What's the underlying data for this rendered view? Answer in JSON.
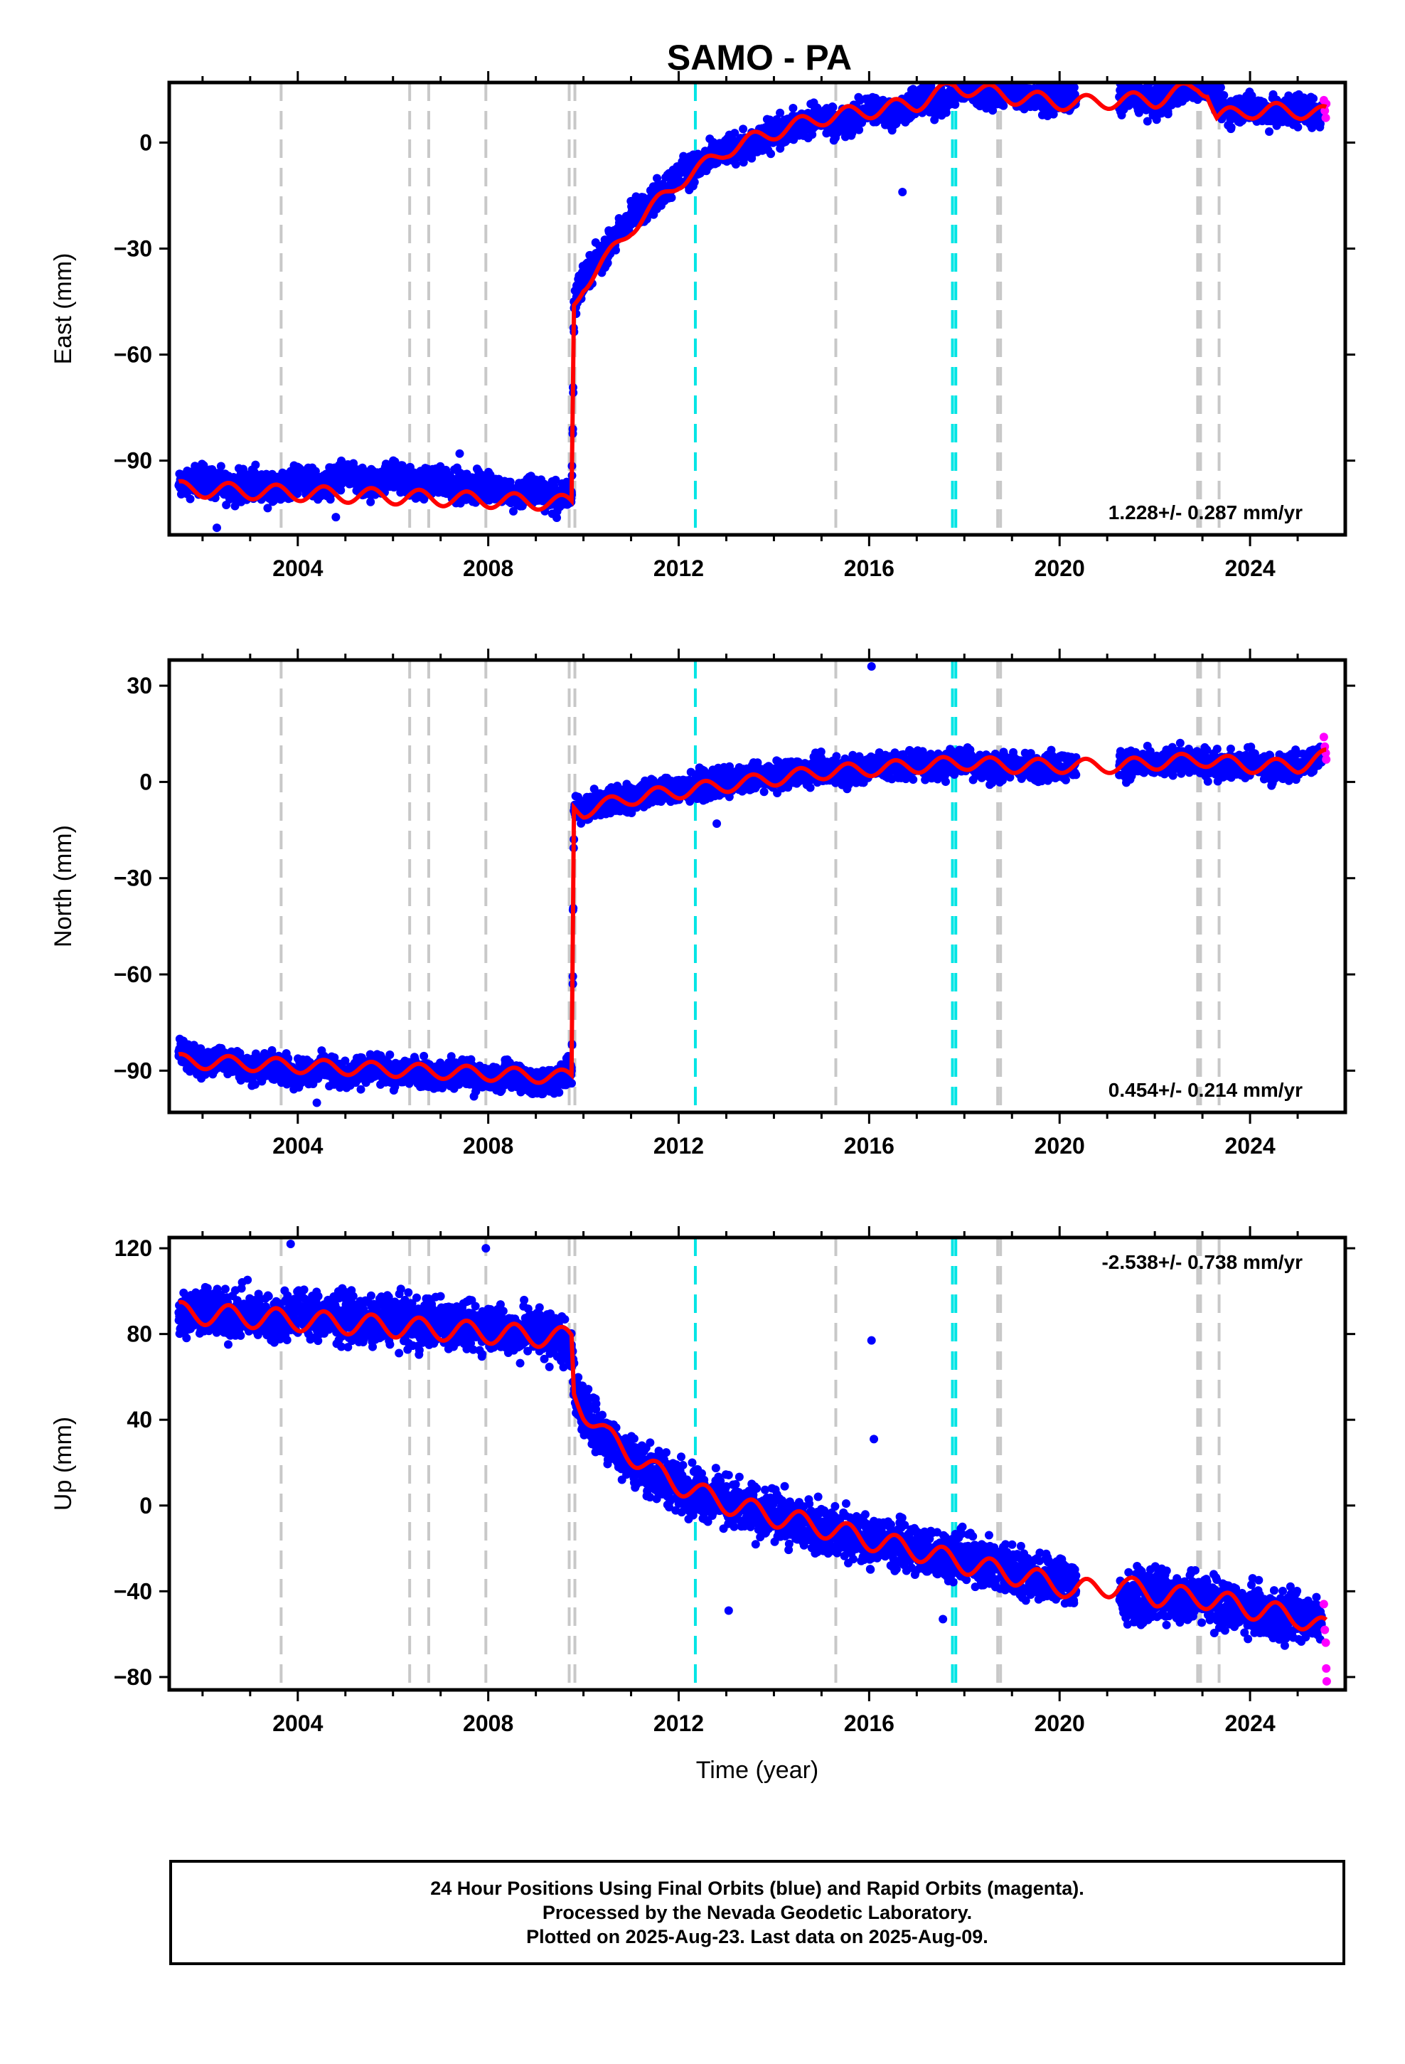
{
  "title": "SAMO - PA",
  "footer": {
    "line1": "24 Hour Positions Using Final Orbits (blue) and Rapid Orbits (magenta).",
    "line2": "Processed by the Nevada Geodetic Laboratory.",
    "line3": "Plotted on 2025-Aug-23. Last data on 2025-Aug-09."
  },
  "chart_data": [
    {
      "type": "scatter",
      "name": "east",
      "ylabel": "East (mm)",
      "xlabel": "",
      "xlim": [
        2001.3,
        2026.0
      ],
      "ylim": [
        -111,
        17
      ],
      "yticks": [
        0,
        -30,
        -60,
        -90
      ],
      "ytick_labels": [
        "0",
        "−30",
        "−60",
        "−90"
      ],
      "xticks": [
        2004,
        2008,
        2012,
        2016,
        2020,
        2024
      ],
      "xtick_labels": [
        "2004",
        "2008",
        "2012",
        "2016",
        "2020",
        "2024"
      ],
      "rate_label": "1.228+/- 0.287 mm/yr",
      "series": [
        {
          "name": "final_orbits",
          "color": "#0000ff",
          "x": [
            2001.5,
            2002.0,
            2002.5,
            2003.0,
            2003.5,
            2004.0,
            2004.5,
            2005.0,
            2005.5,
            2006.0,
            2006.5,
            2007.0,
            2007.5,
            2008.0,
            2008.5,
            2009.0,
            2009.5,
            2009.75,
            2009.8,
            2010.0,
            2010.5,
            2011.0,
            2011.5,
            2012.0,
            2012.5,
            2013.0,
            2013.5,
            2014.0,
            2014.5,
            2015.0,
            2015.5,
            2016.0,
            2016.5,
            2017.0,
            2017.5,
            2018.0,
            2018.5,
            2019.0,
            2019.5,
            2020.0,
            2020.3,
            2021.3,
            2021.5,
            2022.0,
            2022.5,
            2023.0,
            2023.5,
            2024.0,
            2024.5,
            2025.0,
            2025.5
          ],
          "y": [
            -97,
            -95,
            -98,
            -96,
            -99,
            -95,
            -97,
            -94,
            -98,
            -94,
            -97,
            -95,
            -98,
            -97,
            -100,
            -98,
            -101,
            -99,
            -45,
            -38,
            -30,
            -21,
            -16,
            -9,
            -6,
            -2,
            -1,
            3,
            5,
            7,
            5,
            10,
            8,
            12,
            11,
            16,
            13,
            15,
            12,
            14,
            12,
            12,
            14,
            11,
            15,
            17,
            9,
            10,
            8,
            10,
            8
          ]
        },
        {
          "name": "rapid_orbits",
          "color": "#ff00ff",
          "x": [
            2025.55,
            2025.57,
            2025.59,
            2025.6
          ],
          "y": [
            12,
            9,
            7,
            11
          ]
        },
        {
          "name": "outliers",
          "color": "#0000ff",
          "x": [
            2002.3,
            2004.8,
            2016.7,
            2007.4
          ],
          "y": [
            -109,
            -106,
            -14,
            -88
          ]
        }
      ],
      "model": {
        "name": "model",
        "color": "#ff0000",
        "x": [
          2001.5,
          2009.75,
          2009.8,
          2010.0,
          2010.5,
          2011.0,
          2011.5,
          2012.0,
          2012.5,
          2013.0,
          2014.0,
          2015.0,
          2016.0,
          2017.0,
          2017.8,
          2019.0,
          2020.3,
          2021.3,
          2022.0,
          2022.9,
          2023.1,
          2023.3,
          2024.0,
          2025.0,
          2025.6
        ],
        "y": [
          -98,
          -102,
          -46,
          -40,
          -33,
          -24,
          -18,
          -11,
          -7,
          -2,
          3,
          7,
          9,
          11,
          16,
          13,
          11,
          12,
          12,
          16,
          15,
          7,
          9,
          9,
          8
        ]
      },
      "breaks": [
        {
          "x": 2003.65,
          "color": "#c8c8c8"
        },
        {
          "x": 2006.35,
          "color": "#c8c8c8"
        },
        {
          "x": 2006.75,
          "color": "#c8c8c8"
        },
        {
          "x": 2007.95,
          "color": "#c8c8c8"
        },
        {
          "x": 2009.7,
          "color": "#c8c8c8"
        },
        {
          "x": 2009.82,
          "color": "#c8c8c8"
        },
        {
          "x": 2012.35,
          "color": "#00e5e5"
        },
        {
          "x": 2015.3,
          "color": "#c8c8c8"
        },
        {
          "x": 2017.75,
          "color": "#00e5e5"
        },
        {
          "x": 2017.82,
          "color": "#00e5e5"
        },
        {
          "x": 2018.7,
          "color": "#c8c8c8"
        },
        {
          "x": 2018.76,
          "color": "#c8c8c8"
        },
        {
          "x": 2022.9,
          "color": "#c8c8c8"
        },
        {
          "x": 2022.96,
          "color": "#c8c8c8"
        },
        {
          "x": 2023.35,
          "color": "#c8c8c8"
        }
      ]
    },
    {
      "type": "scatter",
      "name": "north",
      "ylabel": "North (mm)",
      "xlabel": "",
      "xlim": [
        2001.3,
        2026.0
      ],
      "ylim": [
        -103,
        38
      ],
      "yticks": [
        30,
        0,
        -30,
        -60,
        -90
      ],
      "ytick_labels": [
        "30",
        "0",
        "−30",
        "−60",
        "−90"
      ],
      "xticks": [
        2004,
        2008,
        2012,
        2016,
        2020,
        2024
      ],
      "xtick_labels": [
        "2004",
        "2008",
        "2012",
        "2016",
        "2020",
        "2024"
      ],
      "rate_label": "0.454+/- 0.214 mm/yr",
      "series": [
        {
          "name": "final_orbits",
          "color": "#0000ff",
          "x": [
            2001.5,
            2002.0,
            2002.5,
            2003.0,
            2003.5,
            2004.0,
            2004.5,
            2005.0,
            2005.5,
            2006.0,
            2006.5,
            2007.0,
            2007.5,
            2008.0,
            2008.5,
            2009.0,
            2009.5,
            2009.75,
            2009.8,
            2010.0,
            2010.5,
            2011.0,
            2011.5,
            2012.0,
            2012.5,
            2013.0,
            2013.5,
            2014.0,
            2014.5,
            2015.0,
            2015.5,
            2016.0,
            2016.5,
            2017.0,
            2017.5,
            2018.0,
            2018.5,
            2019.0,
            2019.5,
            2020.0,
            2020.3,
            2021.3,
            2021.5,
            2022.0,
            2022.5,
            2023.0,
            2023.5,
            2024.0,
            2024.5,
            2025.0,
            2025.5
          ],
          "y": [
            -84,
            -88,
            -86,
            -90,
            -88,
            -91,
            -89,
            -92,
            -89,
            -91,
            -90,
            -92,
            -90,
            -93,
            -91,
            -94,
            -92,
            -90,
            -9,
            -8,
            -6,
            -5,
            -3,
            -2,
            -1,
            0,
            1,
            2,
            3,
            4,
            3,
            5,
            5,
            6,
            5,
            7,
            4,
            5,
            4,
            5,
            5,
            5,
            6,
            5,
            7,
            6,
            5,
            6,
            4,
            5,
            8
          ]
        },
        {
          "name": "rapid_orbits",
          "color": "#ff00ff",
          "x": [
            2025.55,
            2025.57,
            2025.59,
            2025.6
          ],
          "y": [
            14,
            11,
            9,
            7
          ]
        },
        {
          "name": "outliers",
          "color": "#0000ff",
          "x": [
            2016.05,
            2012.8,
            2004.4,
            2007.7
          ],
          "y": [
            36,
            -13,
            -100,
            -98
          ]
        }
      ],
      "model": {
        "name": "model",
        "color": "#ff0000",
        "x": [
          2001.5,
          2009.75,
          2009.8,
          2010.0,
          2011.0,
          2012.0,
          2013.0,
          2014.0,
          2015.0,
          2016.0,
          2017.0,
          2018.0,
          2019.0,
          2020.3,
          2021.3,
          2022.0,
          2023.0,
          2024.0,
          2025.0,
          2025.6
        ],
        "y": [
          -87,
          -92,
          -8,
          -9,
          -5,
          -3,
          -1,
          1,
          3,
          4,
          5,
          6,
          5,
          5,
          5,
          6,
          7,
          5,
          5,
          8
        ]
      },
      "breaks": [
        {
          "x": 2003.65,
          "color": "#c8c8c8"
        },
        {
          "x": 2006.35,
          "color": "#c8c8c8"
        },
        {
          "x": 2006.75,
          "color": "#c8c8c8"
        },
        {
          "x": 2007.95,
          "color": "#c8c8c8"
        },
        {
          "x": 2009.7,
          "color": "#c8c8c8"
        },
        {
          "x": 2009.82,
          "color": "#c8c8c8"
        },
        {
          "x": 2012.35,
          "color": "#00e5e5"
        },
        {
          "x": 2015.3,
          "color": "#c8c8c8"
        },
        {
          "x": 2017.75,
          "color": "#00e5e5"
        },
        {
          "x": 2017.82,
          "color": "#00e5e5"
        },
        {
          "x": 2018.7,
          "color": "#c8c8c8"
        },
        {
          "x": 2018.76,
          "color": "#c8c8c8"
        },
        {
          "x": 2022.9,
          "color": "#c8c8c8"
        },
        {
          "x": 2022.96,
          "color": "#c8c8c8"
        },
        {
          "x": 2023.35,
          "color": "#c8c8c8"
        }
      ]
    },
    {
      "type": "scatter",
      "name": "up",
      "ylabel": "Up (mm)",
      "xlabel": "Time (year)",
      "xlim": [
        2001.3,
        2026.0
      ],
      "ylim": [
        -86,
        125
      ],
      "yticks": [
        120,
        80,
        40,
        0,
        -40,
        -80
      ],
      "ytick_labels": [
        "120",
        "80",
        "40",
        "0",
        "−40",
        "−80"
      ],
      "xticks": [
        2004,
        2008,
        2012,
        2016,
        2020,
        2024
      ],
      "xtick_labels": [
        "2004",
        "2008",
        "2012",
        "2016",
        "2020",
        "2024"
      ],
      "rate_label": "-2.538+/- 0.738 mm/yr",
      "series": [
        {
          "name": "final_orbits",
          "color": "#0000ff",
          "x": [
            2001.5,
            2002.0,
            2002.5,
            2003.0,
            2003.5,
            2004.0,
            2004.5,
            2005.0,
            2005.5,
            2006.0,
            2006.5,
            2007.0,
            2007.5,
            2008.0,
            2008.5,
            2009.0,
            2009.5,
            2009.75,
            2009.8,
            2010.0,
            2010.5,
            2011.0,
            2011.5,
            2012.0,
            2012.5,
            2013.0,
            2013.5,
            2014.0,
            2014.5,
            2015.0,
            2015.5,
            2016.0,
            2016.5,
            2017.0,
            2017.5,
            2018.0,
            2018.5,
            2019.0,
            2019.5,
            2020.0,
            2020.3,
            2021.3,
            2021.5,
            2022.0,
            2022.5,
            2023.0,
            2023.5,
            2024.0,
            2024.5,
            2025.0,
            2025.5
          ],
          "y": [
            90,
            92,
            88,
            90,
            86,
            91,
            87,
            89,
            85,
            88,
            84,
            86,
            83,
            84,
            80,
            82,
            78,
            75,
            52,
            45,
            30,
            22,
            15,
            10,
            5,
            2,
            -2,
            -5,
            -8,
            -10,
            -14,
            -16,
            -18,
            -20,
            -22,
            -24,
            -27,
            -30,
            -33,
            -35,
            -36,
            -42,
            -44,
            -41,
            -45,
            -42,
            -47,
            -48,
            -52,
            -50,
            -55
          ]
        },
        {
          "name": "rapid_orbits",
          "color": "#ff00ff",
          "x": [
            2025.55,
            2025.57,
            2025.59,
            2025.6,
            2025.61
          ],
          "y": [
            -46,
            -58,
            -64,
            -76,
            -82
          ]
        },
        {
          "name": "outliers",
          "color": "#0000ff",
          "x": [
            2016.05,
            2016.1,
            2013.05,
            2003.85,
            2007.95,
            2017.55
          ],
          "y": [
            77,
            31,
            -49,
            122,
            120,
            -53
          ]
        }
      ],
      "model": {
        "name": "model",
        "color": "#ff0000",
        "x": [
          2001.5,
          2009.75,
          2009.8,
          2010.0,
          2010.5,
          2011.0,
          2011.5,
          2012.0,
          2012.5,
          2013.0,
          2014.0,
          2015.0,
          2016.0,
          2017.0,
          2018.0,
          2019.0,
          2020.0,
          2020.3,
          2021.3,
          2022.0,
          2023.0,
          2024.0,
          2025.0,
          2025.6
        ],
        "y": [
          90,
          78,
          52,
          45,
          32,
          24,
          16,
          10,
          5,
          1,
          -5,
          -10,
          -16,
          -21,
          -27,
          -32,
          -37,
          -40,
          -37,
          -42,
          -43,
          -48,
          -52,
          -58
        ]
      },
      "breaks": [
        {
          "x": 2003.65,
          "color": "#c8c8c8"
        },
        {
          "x": 2006.35,
          "color": "#c8c8c8"
        },
        {
          "x": 2006.75,
          "color": "#c8c8c8"
        },
        {
          "x": 2007.95,
          "color": "#c8c8c8"
        },
        {
          "x": 2009.7,
          "color": "#c8c8c8"
        },
        {
          "x": 2009.82,
          "color": "#c8c8c8"
        },
        {
          "x": 2012.35,
          "color": "#00e5e5"
        },
        {
          "x": 2015.3,
          "color": "#c8c8c8"
        },
        {
          "x": 2017.75,
          "color": "#00e5e5"
        },
        {
          "x": 2017.82,
          "color": "#00e5e5"
        },
        {
          "x": 2018.7,
          "color": "#c8c8c8"
        },
        {
          "x": 2018.76,
          "color": "#c8c8c8"
        },
        {
          "x": 2022.9,
          "color": "#c8c8c8"
        },
        {
          "x": 2022.96,
          "color": "#c8c8c8"
        },
        {
          "x": 2023.35,
          "color": "#c8c8c8"
        }
      ]
    }
  ]
}
